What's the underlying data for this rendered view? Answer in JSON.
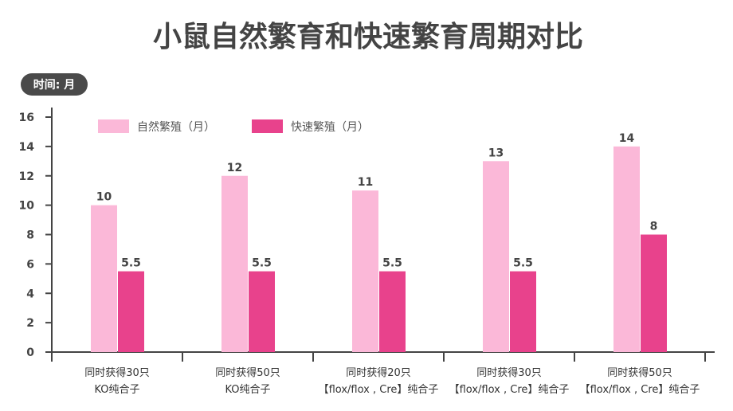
{
  "chart_data": {
    "type": "bar",
    "title": "小鼠自然繁育和快速繁育周期对比",
    "unit_badge": "时间: 月",
    "categories": [
      [
        "同时获得30只",
        "KO纯合子"
      ],
      [
        "同时获得50只",
        "KO纯合子"
      ],
      [
        "同时获得20只",
        "【flox/flox , Cre】纯合子"
      ],
      [
        "同时获得30只",
        "【flox/flox , Cre】纯合子"
      ],
      [
        "同时获得50只",
        "【flox/flox , Cre】纯合子"
      ]
    ],
    "series": [
      {
        "name": "自然繁殖（月）",
        "color": "#fbb8d8",
        "values": [
          10,
          12,
          11,
          13,
          14
        ],
        "labels": [
          "10",
          "12",
          "11",
          "13",
          "14"
        ]
      },
      {
        "name": "快速繁殖（月）",
        "color": "#e8428c",
        "values": [
          5.5,
          5.5,
          5.5,
          5.5,
          8
        ],
        "labels": [
          "5.5",
          "5.5",
          "5.5",
          "5.5",
          "8"
        ]
      }
    ],
    "ylim": [
      0,
      16
    ],
    "yticks": [
      "0",
      "2",
      "4",
      "6",
      "8",
      "10",
      "12",
      "14",
      "16"
    ],
    "legend": "top-left",
    "grid": false
  }
}
